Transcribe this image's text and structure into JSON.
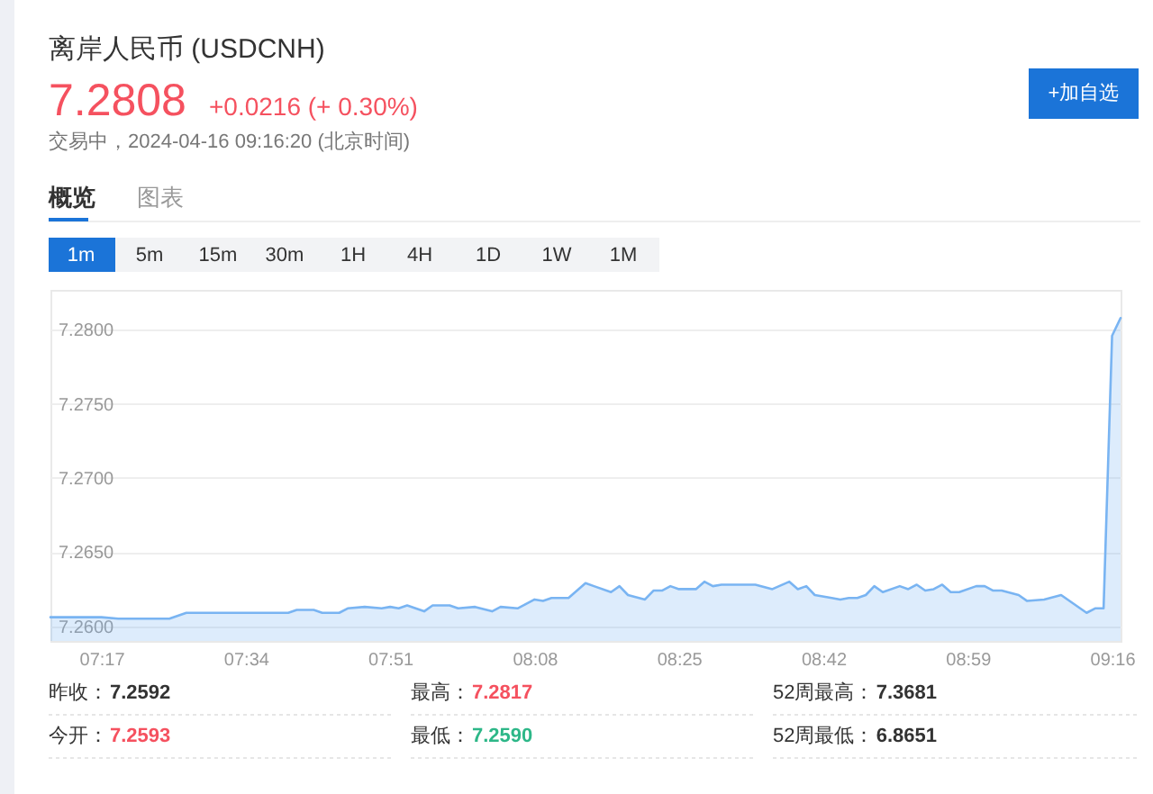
{
  "chart_data": {
    "type": "area",
    "title": "离岸人民币 (USDCNH)",
    "subtitle": "7.2808",
    "annotations": [
      "+0.0216 (+ 0.30%)",
      "+加自选",
      "交易中，2024-04-16 09:16:20 (北京时间)",
      "概览",
      "图表",
      "1m",
      "5m",
      "15m",
      "30m",
      "1H",
      "4H",
      "1D",
      "1W",
      "1M",
      "昨收：7.2592",
      "最高：7.2817",
      "52周最高：7.3681",
      "今开：7.2593",
      "最低：7.2590",
      "52周最低：6.8651"
    ],
    "x": [
      "2024-04-16T07:11",
      "2024-04-16T07:17",
      "2024-04-16T07:19",
      "2024-04-16T07:25",
      "2024-04-16T07:27",
      "2024-04-16T07:39",
      "2024-04-16T07:40",
      "2024-04-16T07:42",
      "2024-04-16T07:43",
      "2024-04-16T07:45",
      "2024-04-16T07:46",
      "2024-04-16T07:48",
      "2024-04-16T07:50",
      "2024-04-16T07:51",
      "2024-04-16T07:52",
      "2024-04-16T07:53",
      "2024-04-16T07:55",
      "2024-04-16T07:56",
      "2024-04-16T07:58",
      "2024-04-16T07:59",
      "2024-04-16T08:01",
      "2024-04-16T08:03",
      "2024-04-16T08:04",
      "2024-04-16T08:06",
      "2024-04-16T08:08",
      "2024-04-16T08:09",
      "2024-04-16T08:10",
      "2024-04-16T08:12",
      "2024-04-16T08:14",
      "2024-04-16T08:15",
      "2024-04-16T08:17",
      "2024-04-16T08:18",
      "2024-04-16T08:19",
      "2024-04-16T08:21",
      "2024-04-16T08:22",
      "2024-04-16T08:23",
      "2024-04-16T08:24",
      "2024-04-16T08:25",
      "2024-04-16T08:27",
      "2024-04-16T08:28",
      "2024-04-16T08:29",
      "2024-04-16T08:30",
      "2024-04-16T08:32",
      "2024-04-16T08:34",
      "2024-04-16T08:36",
      "2024-04-16T08:38",
      "2024-04-16T08:39",
      "2024-04-16T08:40",
      "2024-04-16T08:41",
      "2024-04-16T08:43",
      "2024-04-16T08:44",
      "2024-04-16T08:45",
      "2024-04-16T08:46",
      "2024-04-16T08:47",
      "2024-04-16T08:48",
      "2024-04-16T08:49",
      "2024-04-16T08:51",
      "2024-04-16T08:52",
      "2024-04-16T08:53",
      "2024-04-16T08:54",
      "2024-04-16T08:55",
      "2024-04-16T08:56",
      "2024-04-16T08:57",
      "2024-04-16T08:58",
      "2024-04-16T09:00",
      "2024-04-16T09:01",
      "2024-04-16T09:02",
      "2024-04-16T09:03",
      "2024-04-16T09:05",
      "2024-04-16T09:06",
      "2024-04-16T09:08",
      "2024-04-16T09:10",
      "2024-04-16T09:13",
      "2024-04-16T09:14",
      "2024-04-16T09:15",
      "2024-04-16T09:16",
      "2024-04-16T09:17"
    ],
    "series": [
      {
        "color": "#79b4f2",
        "values": [
          7.2606,
          7.2606,
          7.2605,
          7.2605,
          7.2609,
          7.2609,
          7.2611,
          7.2611,
          7.2609,
          7.2609,
          7.2612,
          7.2613,
          7.2612,
          7.2613,
          7.2612,
          7.2614,
          7.261,
          7.2614,
          7.2614,
          7.2612,
          7.2613,
          7.261,
          7.2613,
          7.2612,
          7.2618,
          7.2617,
          7.2619,
          7.2619,
          7.2629,
          7.2627,
          7.2623,
          7.2627,
          7.2621,
          7.2618,
          7.2624,
          7.2624,
          7.2627,
          7.2625,
          7.2625,
          7.263,
          7.2627,
          7.2628,
          7.2628,
          7.2628,
          7.2625,
          7.263,
          7.2625,
          7.2627,
          7.2621,
          7.2619,
          7.2618,
          7.2619,
          7.2619,
          7.2621,
          7.2627,
          7.2623,
          7.2627,
          7.2625,
          7.2628,
          7.2624,
          7.2625,
          7.2628,
          7.2623,
          7.2623,
          7.2627,
          7.2627,
          7.2624,
          7.2624,
          7.2621,
          7.2617,
          7.2618,
          7.2621,
          7.2609,
          7.2612,
          7.2612,
          7.2796,
          7.2808
        ]
      }
    ],
    "xlim": [
      "2024-04-16T07:11",
      "2024-04-16T09:17"
    ],
    "ylim": [
      7.259,
      7.2827
    ],
    "xticks": [
      {
        "value": "2024-04-16T07:17",
        "label": "07:17"
      },
      {
        "value": "2024-04-16T07:34",
        "label": "07:34"
      },
      {
        "value": "2024-04-16T07:51",
        "label": "07:51"
      },
      {
        "value": "2024-04-16T08:08",
        "label": "08:08"
      },
      {
        "value": "2024-04-16T08:25",
        "label": "08:25"
      },
      {
        "value": "2024-04-16T08:42",
        "label": "08:42"
      },
      {
        "value": "2024-04-16T08:59",
        "label": "08:59"
      },
      {
        "value": "2024-04-16T09:16",
        "label": "09:16"
      }
    ],
    "yticks": [
      {
        "value": 7.26,
        "label": "7.2600"
      },
      {
        "value": 7.265,
        "label": "7.2650"
      },
      {
        "value": 7.27,
        "label": "7.2700"
      },
      {
        "value": 7.275,
        "label": "7.2750"
      },
      {
        "value": 7.28,
        "label": "7.2800"
      }
    ],
    "grid": "y"
  }
}
